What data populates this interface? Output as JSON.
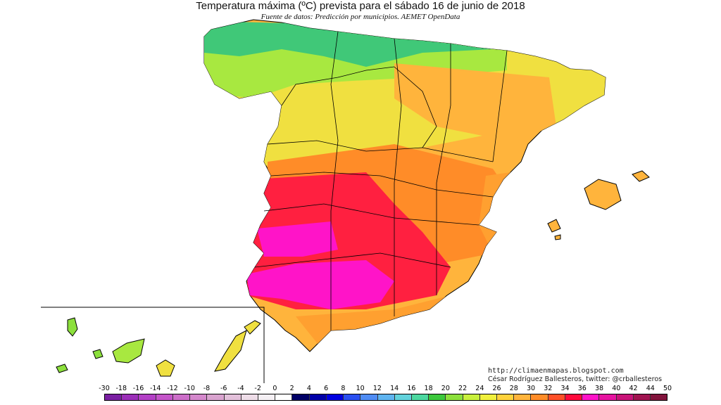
{
  "header": {
    "title": "Temperatura máxima (ºC) prevista para el sábado 16 de junio de 2018",
    "subtitle": "Fuente de datos: Predicción por municipios. AEMET OpenData"
  },
  "credits": {
    "url": "http://climaenmapas.blogspot.com",
    "author": "César Rodríguez Ballesteros, twitter: @crballesteros"
  },
  "legend": {
    "labels": [
      "-30",
      "-18",
      "-16",
      "-14",
      "-12",
      "-10",
      "-8",
      "-6",
      "-4",
      "-2",
      "0",
      "2",
      "4",
      "6",
      "8",
      "10",
      "12",
      "14",
      "16",
      "18",
      "20",
      "22",
      "24",
      "26",
      "28",
      "30",
      "32",
      "34",
      "36",
      "38",
      "40",
      "42",
      "44",
      "50"
    ],
    "colors": [
      "#7a1fa2",
      "#9b2fb8",
      "#b340c6",
      "#c455c9",
      "#cc6ec9",
      "#d488cc",
      "#d9a3cf",
      "#e3c0da",
      "#eedde8",
      "#f5f0f4",
      "#ffffff",
      "#000066",
      "#0000a8",
      "#0000e0",
      "#2a4ff0",
      "#4f8cf4",
      "#5fb4f0",
      "#62d2dc",
      "#4cd8a0",
      "#3cc83c",
      "#8ce03c",
      "#c8f03c",
      "#f0f03c",
      "#ffd23c",
      "#ffb43c",
      "#ff8c28",
      "#ff5028",
      "#ff0a3c",
      "#ff14c8",
      "#e614a0",
      "#c81478",
      "#a01450",
      "#82143c"
    ]
  },
  "map": {
    "water_color": "#ffffff",
    "border_color": "#000000",
    "zones": [
      {
        "name": "north-coast",
        "color": "#40c878"
      },
      {
        "name": "cantabrian-mountains",
        "color": "#8ce03c"
      },
      {
        "name": "northern-plateau",
        "color": "#f0e040"
      },
      {
        "name": "ebro-valley",
        "color": "#ffb43c"
      },
      {
        "name": "central-spain",
        "color": "#ff8c28"
      },
      {
        "name": "southwest",
        "color": "#ff2040"
      },
      {
        "name": "guadalquivir",
        "color": "#ff14c8"
      },
      {
        "name": "east-coast",
        "color": "#ffb43c"
      },
      {
        "name": "balearic-islands",
        "color": "#ffb43c"
      },
      {
        "name": "canary-islands",
        "color": "#8ce03c"
      }
    ]
  }
}
